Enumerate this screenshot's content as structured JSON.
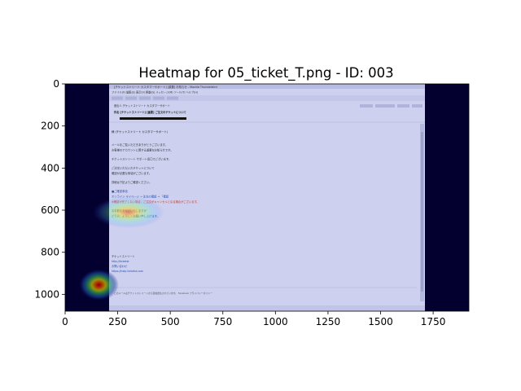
{
  "chart_data": {
    "type": "heatmap",
    "title": "Heatmap for 05_ticket_T.png - ID: 003",
    "xlim": [
      0,
      1920
    ],
    "ylim": [
      1080,
      0
    ],
    "x_ticks": [
      0,
      250,
      500,
      750,
      1000,
      1250,
      1500,
      1750
    ],
    "y_ticks": [
      0,
      200,
      400,
      600,
      800,
      1000
    ],
    "background_image": "screenshot of a Thunderbird email window (05_ticket_T.png), dark navy margins on both sides",
    "colormap": "jet",
    "hotspots": [
      {
        "x": 300,
        "y": 610,
        "radius_x": 170,
        "radius_y": 75,
        "intensity": 0.6
      },
      {
        "x": 160,
        "y": 955,
        "radius_x": 95,
        "radius_y": 75,
        "intensity": 1.0
      }
    ]
  },
  "email": {
    "window_title": "[チケットストリート カスタマーサポート] [重要] お知らせ - Mozilla Thunderbird",
    "menu": "ファイル(F)  編集(E)  表示(V)  移動(G)  メッセージ(M)  ツール(T)  ヘルプ(H)",
    "from_line": "差出人 チケットストリート カスタマーサポート",
    "subject_line": "件名 [チケットストリート] [重要] ご注文のチケットについて",
    "greeting": "様 (チケットストリート カスタマーサポート)",
    "body_lines": [
      "メールをご覧いただきありがとうございます。",
      "お客様のアカウントに関する重要なお知らせです。",
      "",
      "チケットストリート サポート窓口でございます。",
      "",
      "ご注文いただいたチケットについて",
      "確認が必要な事項がございます。",
      "",
      "詳細は下記よりご確認ください。",
      "",
      "■ご確認事項",
      "オンライン マイページ → 注文の確認 → 「確認",
      "※確認が完了しない場合、ご注文がキャンセルとなる場合がございます。",
      "",
      "お手数をおかけいたしますが",
      "どうぞ、よろしくお願い申し上げます。"
    ],
    "signature": [
      "チケットストリート",
      "http://ticketst",
      "お問い合わせ",
      "https://help.ticketst.com"
    ],
    "footer": "このメールはチケットストリートから自動送信されています。 Facebook  プライバシーポリシー"
  }
}
